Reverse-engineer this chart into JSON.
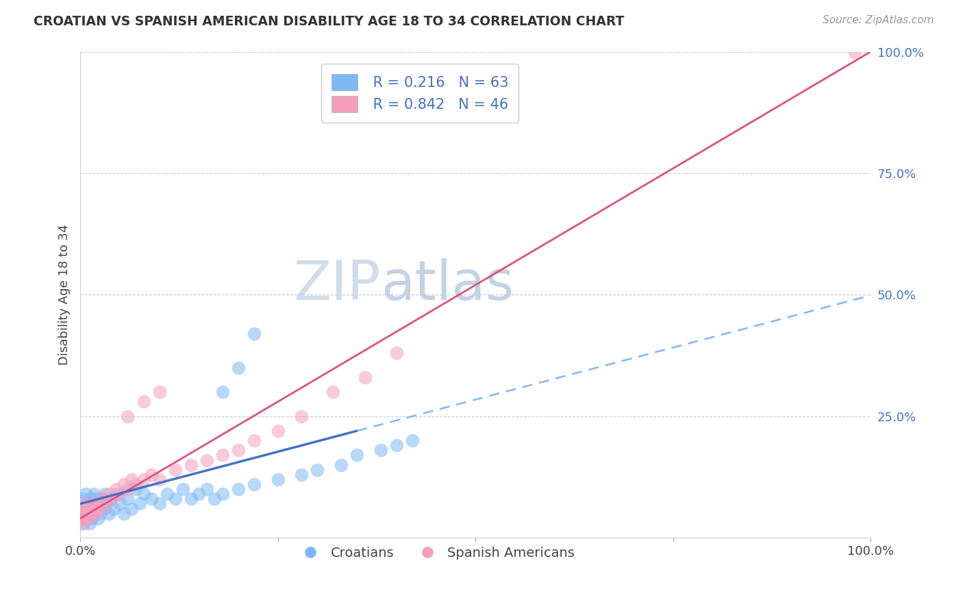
{
  "title": "CROATIAN VS SPANISH AMERICAN DISABILITY AGE 18 TO 34 CORRELATION CHART",
  "source": "Source: ZipAtlas.com",
  "ylabel": "Disability Age 18 to 34",
  "xlim": [
    0,
    1.0
  ],
  "ylim": [
    0,
    1.0
  ],
  "R_croatian": 0.216,
  "N_croatian": 63,
  "R_spanish": 0.842,
  "N_spanish": 46,
  "color_croatian": "#7EB8F7",
  "color_spanish": "#F4A0BC",
  "color_line_croatian": "#4472C4",
  "color_line_spanish": "#E05080",
  "color_line_croatian_dash": "#7EB8F7",
  "watermark_zip": "ZIP",
  "watermark_atlas": "atlas",
  "background_color": "#FFFFFF",
  "grid_color": "#CCCCCC",
  "ytick_color": "#4472C4",
  "croatian_x": [
    0.0,
    0.001,
    0.002,
    0.003,
    0.004,
    0.005,
    0.006,
    0.007,
    0.008,
    0.009,
    0.01,
    0.011,
    0.012,
    0.013,
    0.014,
    0.015,
    0.016,
    0.017,
    0.018,
    0.019,
    0.02,
    0.021,
    0.022,
    0.023,
    0.025,
    0.027,
    0.029,
    0.031,
    0.033,
    0.036,
    0.039,
    0.042,
    0.046,
    0.05,
    0.055,
    0.06,
    0.065,
    0.07,
    0.075,
    0.08,
    0.09,
    0.1,
    0.11,
    0.12,
    0.13,
    0.14,
    0.15,
    0.16,
    0.17,
    0.18,
    0.2,
    0.22,
    0.25,
    0.28,
    0.3,
    0.33,
    0.35,
    0.38,
    0.4,
    0.42,
    0.18,
    0.2,
    0.22
  ],
  "croatian_y": [
    0.05,
    0.04,
    0.06,
    0.08,
    0.03,
    0.07,
    0.05,
    0.09,
    0.04,
    0.06,
    0.05,
    0.07,
    0.03,
    0.06,
    0.08,
    0.04,
    0.06,
    0.09,
    0.05,
    0.07,
    0.06,
    0.08,
    0.04,
    0.07,
    0.05,
    0.08,
    0.06,
    0.09,
    0.07,
    0.05,
    0.08,
    0.06,
    0.09,
    0.07,
    0.05,
    0.08,
    0.06,
    0.1,
    0.07,
    0.09,
    0.08,
    0.07,
    0.09,
    0.08,
    0.1,
    0.08,
    0.09,
    0.1,
    0.08,
    0.09,
    0.1,
    0.11,
    0.12,
    0.13,
    0.14,
    0.15,
    0.17,
    0.18,
    0.19,
    0.2,
    0.3,
    0.35,
    0.42
  ],
  "spanish_x": [
    0.0,
    0.001,
    0.002,
    0.003,
    0.004,
    0.005,
    0.006,
    0.007,
    0.008,
    0.009,
    0.01,
    0.012,
    0.014,
    0.016,
    0.018,
    0.02,
    0.022,
    0.025,
    0.028,
    0.032,
    0.036,
    0.04,
    0.045,
    0.05,
    0.055,
    0.06,
    0.065,
    0.07,
    0.08,
    0.09,
    0.1,
    0.12,
    0.14,
    0.16,
    0.18,
    0.2,
    0.22,
    0.25,
    0.28,
    0.32,
    0.36,
    0.4,
    0.06,
    0.08,
    0.1,
    0.98
  ],
  "spanish_y": [
    0.04,
    0.03,
    0.05,
    0.04,
    0.06,
    0.05,
    0.07,
    0.04,
    0.06,
    0.05,
    0.04,
    0.06,
    0.05,
    0.07,
    0.06,
    0.05,
    0.07,
    0.06,
    0.08,
    0.07,
    0.09,
    0.08,
    0.1,
    0.09,
    0.11,
    0.1,
    0.12,
    0.11,
    0.12,
    0.13,
    0.12,
    0.14,
    0.15,
    0.16,
    0.17,
    0.18,
    0.2,
    0.22,
    0.25,
    0.3,
    0.33,
    0.38,
    0.25,
    0.28,
    0.3,
    1.0
  ],
  "line_croatian_solid_xmax": 0.35,
  "line_croatian_dash_xmin": 0.35,
  "line_croatian_dash_xmax": 1.0
}
